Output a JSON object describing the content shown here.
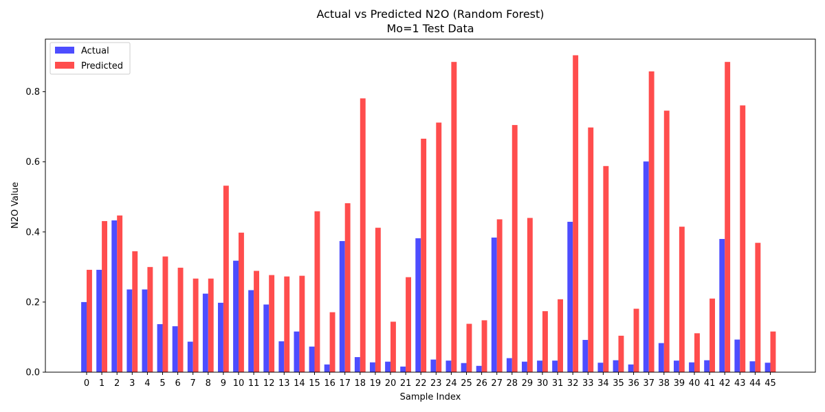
{
  "chart_data": {
    "type": "bar",
    "title": "Actual vs Predicted N2O (Random Forest)",
    "subtitle": "Mo=1 Test Data",
    "xlabel": "Sample Index",
    "ylabel": "N2O Value",
    "ylim": [
      0,
      0.95
    ],
    "yticks": [
      "0.0",
      "0.2",
      "0.4",
      "0.6",
      "0.8"
    ],
    "grid": false,
    "legend_placement": "top-left",
    "categories": [
      "0",
      "1",
      "2",
      "3",
      "4",
      "5",
      "6",
      "7",
      "8",
      "9",
      "10",
      "11",
      "12",
      "13",
      "14",
      "15",
      "16",
      "17",
      "18",
      "19",
      "20",
      "21",
      "22",
      "23",
      "24",
      "25",
      "26",
      "27",
      "28",
      "29",
      "30",
      "31",
      "32",
      "33",
      "34",
      "35",
      "36",
      "37",
      "38",
      "39",
      "40",
      "41",
      "42",
      "43",
      "44",
      "45"
    ],
    "series": [
      {
        "name": "Actual",
        "color": "#4d4dff",
        "values": [
          0.2,
          0.292,
          0.433,
          0.236,
          0.236,
          0.137,
          0.131,
          0.087,
          0.224,
          0.198,
          0.318,
          0.234,
          0.193,
          0.088,
          0.116,
          0.073,
          0.022,
          0.374,
          0.043,
          0.028,
          0.03,
          0.016,
          0.382,
          0.036,
          0.033,
          0.026,
          0.018,
          0.384,
          0.04,
          0.03,
          0.033,
          0.033,
          0.429,
          0.092,
          0.027,
          0.034,
          0.022,
          0.601,
          0.083,
          0.033,
          0.028,
          0.034,
          0.38,
          0.093,
          0.031,
          0.027
        ]
      },
      {
        "name": "Predicted",
        "color": "#ff4d4d",
        "values": [
          0.292,
          0.431,
          0.447,
          0.345,
          0.3,
          0.33,
          0.298,
          0.267,
          0.267,
          0.532,
          0.398,
          0.289,
          0.277,
          0.273,
          0.275,
          0.459,
          0.171,
          0.482,
          0.781,
          0.412,
          0.144,
          0.271,
          0.666,
          0.712,
          0.885,
          0.138,
          0.148,
          0.436,
          0.705,
          0.44,
          0.174,
          0.208,
          0.904,
          0.698,
          0.588,
          0.104,
          0.181,
          0.858,
          0.746,
          0.415,
          0.111,
          0.21,
          0.885,
          0.761,
          0.369,
          0.116
        ]
      }
    ]
  }
}
